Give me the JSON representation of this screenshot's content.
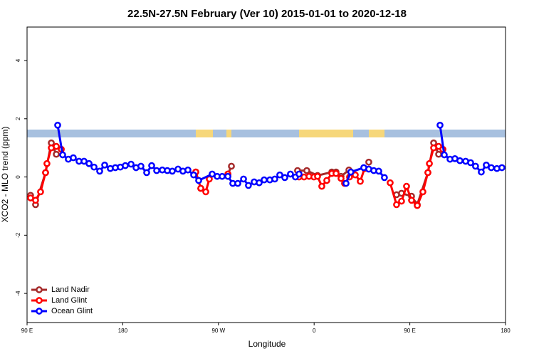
{
  "chart_data": {
    "type": "line",
    "title": "22.5N-27.5N February (Ver 10)   2015-01-01 to 2020-12-18",
    "x_label": "Longitude",
    "y_label": "XCO2 - MLO trend (ppm)",
    "xlim": [
      90,
      540
    ],
    "ylim": [
      -5,
      5.15
    ],
    "xticks": [
      {
        "value": 90,
        "label": "90 E"
      },
      {
        "value": 180,
        "label": "180"
      },
      {
        "value": 270,
        "label": "90 W"
      },
      {
        "value": 360,
        "label": "0"
      },
      {
        "value": 450,
        "label": "90 E"
      },
      {
        "value": 540,
        "label": "180"
      }
    ],
    "yticks": [
      -4,
      -2,
      0,
      2,
      4
    ],
    "legend": "bottom-left",
    "series": [
      {
        "name": "Land Nadir",
        "color": "#a52a2a",
        "x": [
          93.3,
          98,
          107.4,
          112.8,
          117.5,
          null,
          248.7,
          253.4,
          null,
          278.9,
          282.2,
          null,
          344.4,
          353.1,
          363.2,
          376.6,
          380.6,
          385.3,
          392.7,
          null,
          411.4,
          null,
          437.5,
          442.2,
          451.6,
          457,
          467,
          472.4,
          477.1
        ],
        "values": [
          -0.63,
          -0.95,
          0.15,
          1.17,
          0.78,
          null,
          0.17,
          -0.39,
          null,
          0.1,
          0.37,
          null,
          0.22,
          0.22,
          0.05,
          0.17,
          0.17,
          0.02,
          0.24,
          null,
          0.51,
          null,
          -0.61,
          -0.56,
          -0.66,
          -0.95,
          0.15,
          1.17,
          0.78
        ]
      },
      {
        "name": "Land Glint",
        "color": "#ff0000",
        "x": [
          93.3,
          98,
          102.7,
          107.4,
          108.7,
          112.8,
          117.5,
          122.2,
          null,
          248.7,
          253.4,
          258.1,
          261.4,
          null,
          278.9,
          null,
          345.8,
          350.5,
          355.2,
          359.8,
          363.2,
          367.2,
          371.9,
          376.6,
          380.6,
          385.3,
          388.6,
          393.3,
          398.7,
          403.4,
          407.4,
          null,
          431.5,
          437.5,
          442.2,
          446.9,
          451.6,
          457,
          462.3,
          467,
          468.4,
          472.4,
          477.1,
          481.1
        ],
        "values": [
          -0.72,
          -0.8,
          -0.51,
          0.15,
          0.46,
          1.0,
          1.05,
          0.95,
          null,
          0.17,
          -0.39,
          -0.51,
          -0.07,
          null,
          0.1,
          null,
          0.0,
          0.0,
          0.02,
          0.0,
          0.02,
          -0.32,
          -0.12,
          0.12,
          0.12,
          -0.05,
          -0.22,
          0.0,
          0.07,
          -0.15,
          0.29,
          null,
          -0.2,
          -0.95,
          -0.83,
          -0.32,
          -0.8,
          -0.98,
          -0.51,
          0.15,
          0.46,
          1.0,
          1.05,
          0.95
        ]
      },
      {
        "name": "Ocean Glint",
        "color": "#0000ff",
        "x": [
          118.8,
          123.5,
          128.8,
          133.5,
          138.9,
          143.6,
          148.3,
          153,
          158.3,
          163,
          168.3,
          173,
          177.7,
          182.4,
          187.8,
          192.5,
          197.1,
          202.5,
          207.2,
          211.9,
          217.2,
          221.9,
          226.6,
          232,
          236.6,
          241.3,
          246.7,
          251.4,
          264.1,
          268.8,
          273.5,
          278.9,
          283.5,
          288.2,
          293.6,
          298.2,
          303.6,
          308.3,
          313,
          318.3,
          323,
          327.7,
          332.4,
          337.7,
          342.4,
          345.8,
          null,
          390,
          394.5,
          406.7,
          411.4,
          416.1,
          420.8,
          426.1,
          null,
          478.4,
          482.4,
          487.8,
          492.4,
          497.1,
          502.5,
          507.2,
          511.8,
          517.2,
          521.9,
          526.6,
          531.9,
          536.6
        ],
        "values": [
          1.78,
          0.76,
          0.61,
          0.66,
          0.54,
          0.54,
          0.46,
          0.34,
          0.2,
          0.41,
          0.29,
          0.32,
          0.34,
          0.39,
          0.44,
          0.32,
          0.37,
          0.15,
          0.39,
          0.22,
          0.24,
          0.22,
          0.2,
          0.27,
          0.2,
          0.24,
          0.07,
          -0.12,
          0.1,
          0.02,
          0.02,
          0.02,
          -0.22,
          -0.22,
          -0.07,
          -0.29,
          -0.17,
          -0.2,
          -0.1,
          -0.1,
          -0.07,
          0.07,
          -0.02,
          0.1,
          0.0,
          0.1,
          null,
          -0.22,
          0.17,
          0.32,
          0.27,
          0.22,
          0.2,
          -0.02,
          null,
          1.78,
          0.76,
          0.61,
          0.63,
          0.56,
          0.54,
          0.49,
          0.37,
          0.17,
          0.41,
          0.32,
          0.29,
          0.32
        ]
      }
    ]
  }
}
